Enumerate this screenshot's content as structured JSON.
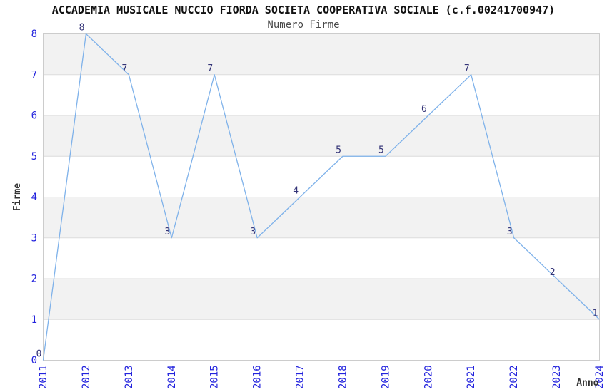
{
  "chart_data": {
    "type": "line",
    "title": "ACCADEMIA MUSICALE NUCCIO FIORDA SOCIETA COOPERATIVA SOCIALE (c.f.00241700947)",
    "subtitle": "Numero Firme",
    "xlabel": "Anno",
    "ylabel": "Firme",
    "x": [
      2011,
      2012,
      2013,
      2014,
      2015,
      2016,
      2017,
      2018,
      2019,
      2020,
      2021,
      2022,
      2023,
      2024
    ],
    "values": [
      0,
      8,
      7,
      3,
      7,
      3,
      4,
      5,
      5,
      6,
      7,
      3,
      2,
      1
    ],
    "ylim": [
      0,
      8
    ],
    "ytick_step": 1,
    "yticks": [
      0,
      1,
      2,
      3,
      4,
      5,
      6,
      7,
      8
    ],
    "point_labels": [
      "0",
      "8",
      "7",
      "3",
      "7",
      "3",
      "4",
      "5",
      "5",
      "6",
      "7",
      "3",
      "2",
      "1"
    ],
    "grid": true,
    "banded_background": true,
    "legend_position": "none",
    "x_tick_rotation_deg": -90,
    "colors": {
      "line": "#7fb2ea",
      "tick_label": "#2323dd",
      "point_label": "#333377",
      "band": "#f2f2f2",
      "gridline": "#dcdcdc",
      "plot_border": "#cccccc",
      "title": "#111111",
      "subtitle": "#4a4a4a",
      "axis_title": "#333333",
      "background": "#ffffff"
    }
  }
}
